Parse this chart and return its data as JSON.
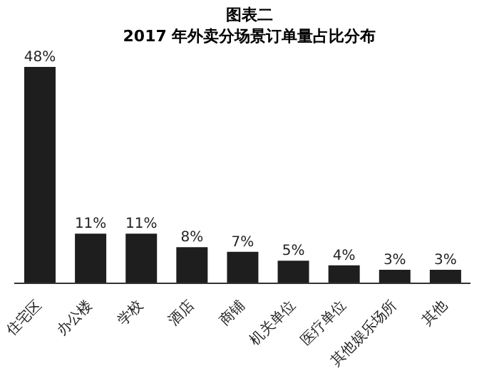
{
  "chart_data": {
    "type": "bar",
    "title": "图表二",
    "subtitle": "2017 年外卖分场景订单量占比分布",
    "categories": [
      "住宅区",
      "办公楼",
      "学校",
      "酒店",
      "商铺",
      "机关单位",
      "医疗单位",
      "其他娱乐场所",
      "其他"
    ],
    "values": [
      48,
      11,
      11,
      8,
      7,
      5,
      4,
      3,
      3
    ],
    "value_labels": [
      "48%",
      "11%",
      "11%",
      "8%",
      "7%",
      "5%",
      "4%",
      "3%",
      "3%"
    ],
    "color": "#1e1e1e",
    "grid": false,
    "legend": false
  }
}
